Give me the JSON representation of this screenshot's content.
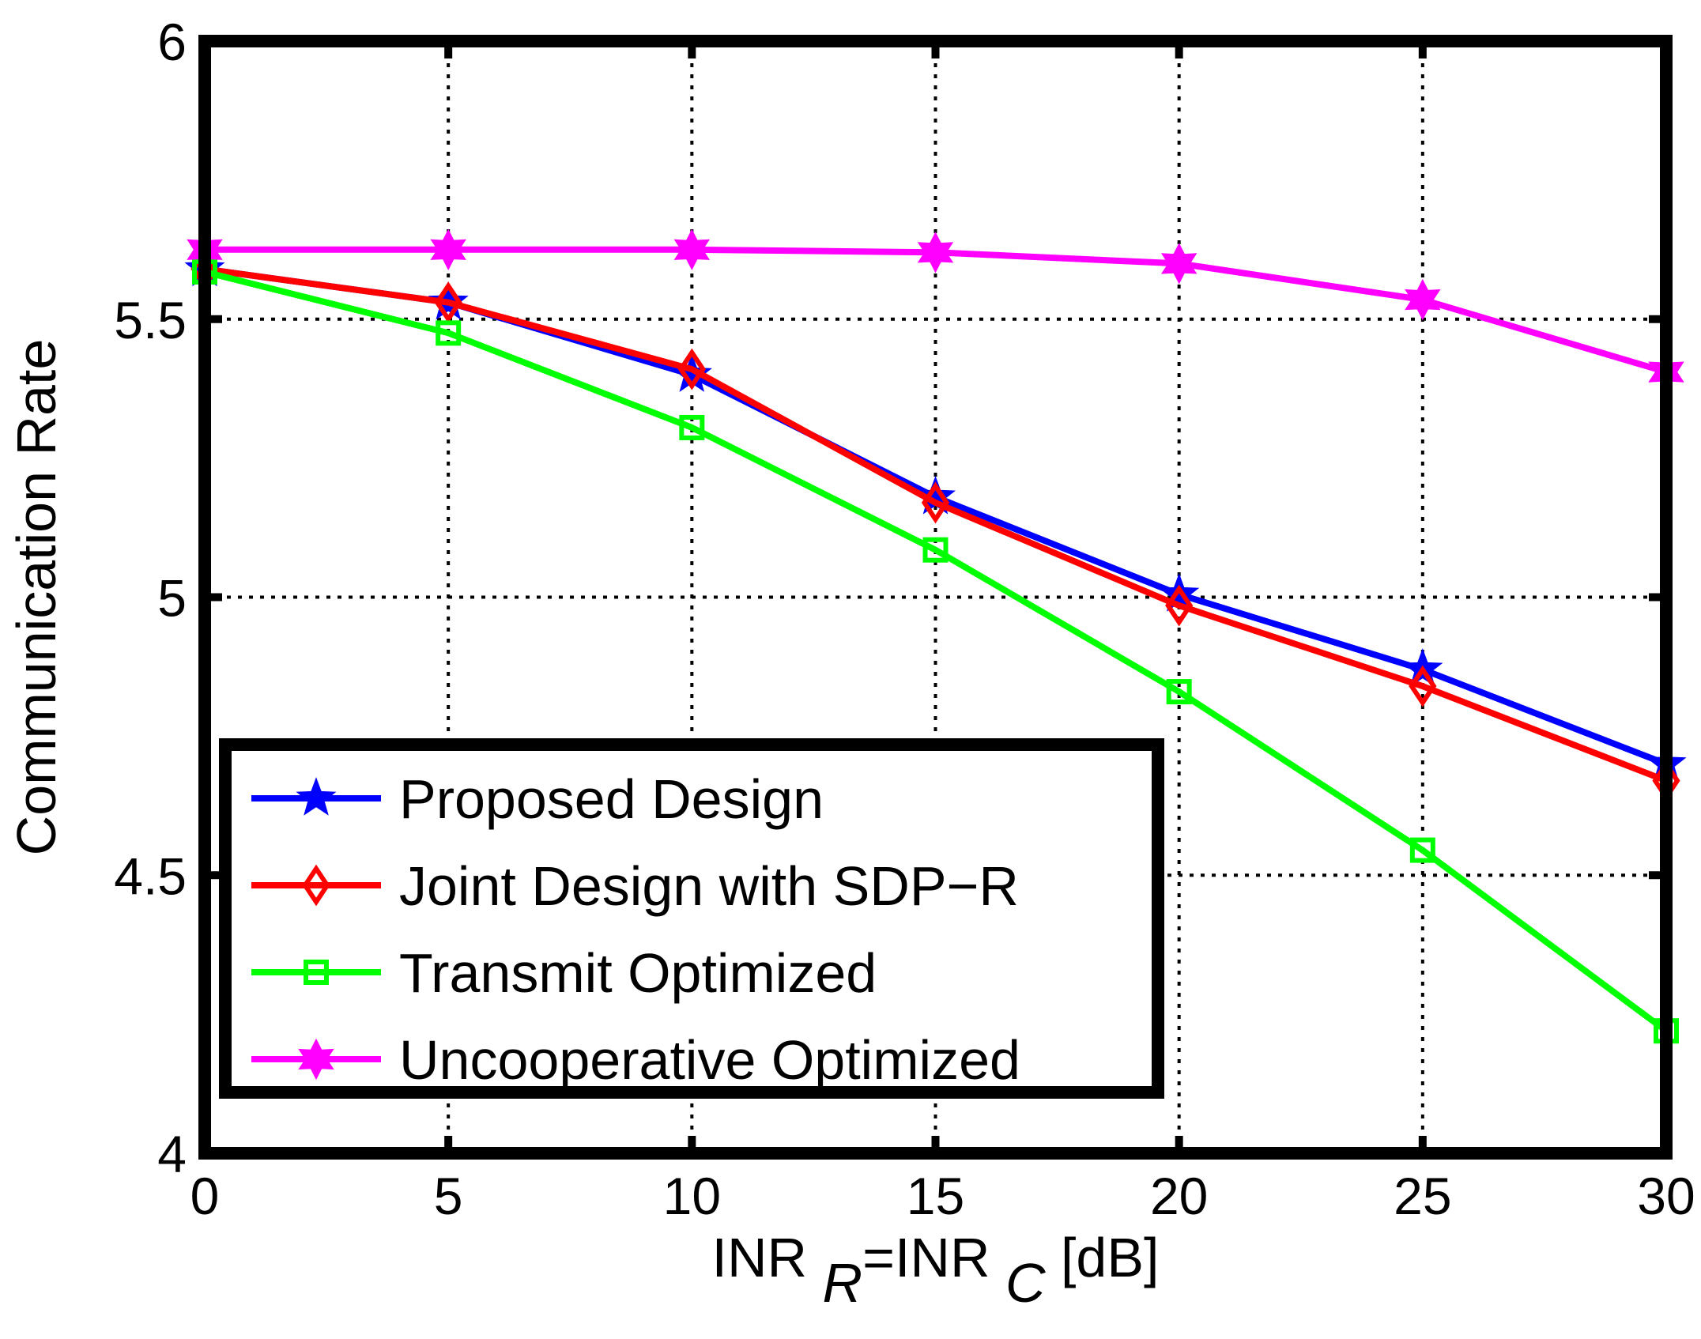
{
  "chart_data": {
    "type": "line",
    "title": "",
    "xlabel": {
      "parts": [
        {
          "text": "INR ",
          "sub": false
        },
        {
          "text": "R",
          "sub": true
        },
        {
          "text": "=INR ",
          "sub": false
        },
        {
          "text": "C",
          "sub": true
        },
        {
          "text": " [dB]",
          "sub": false
        }
      ]
    },
    "ylabel": "Communication Rate",
    "xlim": [
      0,
      30
    ],
    "ylim": [
      4,
      6
    ],
    "xticks": [
      0,
      5,
      10,
      15,
      20,
      25,
      30
    ],
    "yticks": [
      4,
      4.5,
      5,
      5.5,
      6
    ],
    "xtick_labels": [
      "0",
      "5",
      "10",
      "15",
      "20",
      "25",
      "30"
    ],
    "ytick_labels": [
      "4",
      "4.5",
      "5",
      "5.5",
      "6"
    ],
    "grid": true,
    "legend_position": "bottom-left",
    "x": [
      0,
      5,
      10,
      15,
      20,
      25,
      30
    ],
    "series": [
      {
        "name": "Proposed Design",
        "color": "#0000ff",
        "marker": "pentagram",
        "values": [
          5.59,
          5.53,
          5.4,
          5.18,
          5.005,
          4.87,
          4.7
        ]
      },
      {
        "name": "Joint Design with SDP−R",
        "color": "#ff0000",
        "marker": "diamond",
        "values": [
          5.59,
          5.53,
          5.41,
          5.17,
          4.985,
          4.84,
          4.67
        ]
      },
      {
        "name": "Transmit Optimized",
        "color": "#00ff00",
        "marker": "square",
        "values": [
          5.585,
          5.475,
          5.305,
          5.085,
          4.83,
          4.545,
          4.22
        ]
      },
      {
        "name": "Uncooperative Optimized",
        "color": "#ff00ff",
        "marker": "hexagram",
        "values": [
          5.625,
          5.625,
          5.625,
          5.62,
          5.6,
          5.535,
          5.405
        ]
      }
    ]
  }
}
